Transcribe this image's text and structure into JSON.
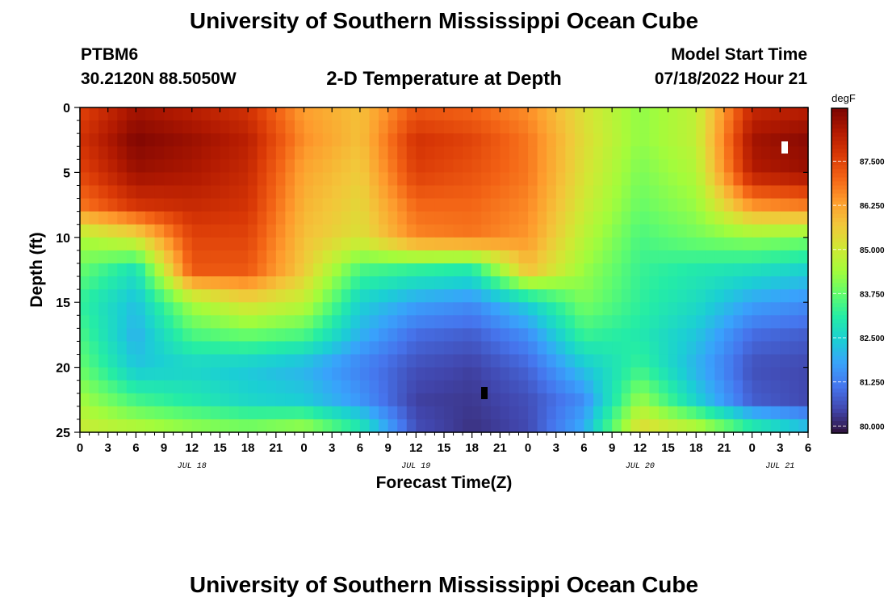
{
  "header": {
    "title": "University of Southern Mississippi Ocean Cube",
    "station": "PTBM6",
    "coords": "30.2120N  88.5050W",
    "subtitle": "2-D Temperature at Depth",
    "model_label": "Model Start Time",
    "model_time": "07/18/2022 Hour 21"
  },
  "footer": {
    "title": "University of Southern Mississippi Ocean Cube"
  },
  "chart_data": {
    "type": "heatmap",
    "xlabel": "Forecast Time(Z)",
    "ylabel": "Depth (ft)",
    "x_hours_range": [
      0,
      78
    ],
    "x_tick_labels": [
      "0",
      "3",
      "6",
      "9",
      "12",
      "15",
      "18",
      "21",
      "0",
      "3",
      "6",
      "9",
      "12",
      "15",
      "18",
      "21",
      "0",
      "3",
      "6",
      "9",
      "12",
      "15",
      "18",
      "21",
      "0",
      "3",
      "6"
    ],
    "date_labels": [
      {
        "label": "JUL 18",
        "hour": 12
      },
      {
        "label": "JUL 19",
        "hour": 36
      },
      {
        "label": "JUL 20",
        "hour": 60
      },
      {
        "label": "JUL 21",
        "hour": 75
      }
    ],
    "ylim": [
      0,
      25
    ],
    "y_tick_labels": [
      "0",
      "5",
      "10",
      "15",
      "20",
      "25"
    ],
    "y_ticks": [
      0,
      5,
      10,
      15,
      20,
      25
    ],
    "colorbar": {
      "unit": "degF",
      "range": [
        79.8,
        89.0
      ],
      "tick_values": [
        80.0,
        81.25,
        82.5,
        83.75,
        85.0,
        86.25,
        87.5
      ],
      "tick_labels": [
        "80.000",
        "81.250",
        "82.500",
        "83.750",
        "85.000",
        "86.250",
        "87.500"
      ]
    },
    "colormap": [
      "#30123b",
      "#4145ab",
      "#4675ed",
      "#39a2fc",
      "#1bcfd4",
      "#24eca6",
      "#61fc6c",
      "#a4fc3b",
      "#d1e834",
      "#f3c63a",
      "#fe9b2d",
      "#f36315",
      "#d93806",
      "#b11901",
      "#7a0402"
    ],
    "x_hours": [
      0,
      6,
      12,
      18,
      24,
      30,
      36,
      42,
      48,
      54,
      60,
      66,
      72,
      78
    ],
    "depths": [
      0,
      2.5,
      5,
      7.5,
      10,
      12.5,
      15,
      17.5,
      20,
      22.5,
      25
    ],
    "temperature_degF": [
      [
        87.5,
        88.5,
        88.2,
        87.8,
        86.3,
        85.8,
        87.2,
        87.0,
        86.5,
        85.2,
        84.2,
        84.8,
        88.0,
        88.2
      ],
      [
        87.8,
        88.9,
        88.6,
        88.2,
        86.5,
        85.8,
        87.8,
        87.5,
        86.8,
        85.3,
        84.2,
        84.8,
        88.5,
        88.8
      ],
      [
        87.5,
        88.6,
        88.4,
        88.0,
        86.2,
        85.6,
        87.6,
        87.3,
        86.8,
        85.2,
        84.0,
        84.6,
        88.3,
        88.6
      ],
      [
        86.8,
        87.8,
        88.0,
        87.8,
        86.0,
        85.4,
        87.0,
        87.0,
        86.6,
        85.0,
        83.8,
        84.3,
        86.5,
        86.8
      ],
      [
        84.5,
        85.2,
        87.5,
        87.5,
        85.8,
        85.2,
        86.6,
        86.8,
        86.4,
        84.7,
        83.5,
        83.9,
        84.2,
        84.0
      ],
      [
        83.8,
        82.8,
        87.2,
        87.2,
        85.6,
        83.5,
        83.2,
        83.0,
        85.8,
        84.3,
        83.3,
        83.0,
        82.8,
        82.5
      ],
      [
        83.2,
        82.2,
        84.5,
        85.3,
        84.8,
        82.5,
        81.8,
        81.5,
        82.5,
        84.0,
        83.2,
        82.7,
        81.8,
        81.5
      ],
      [
        83.5,
        82.0,
        83.5,
        83.8,
        83.5,
        82.0,
        81.0,
        80.8,
        81.5,
        83.3,
        83.0,
        82.3,
        81.0,
        80.8
      ],
      [
        83.8,
        82.3,
        82.5,
        82.3,
        82.0,
        81.3,
        80.6,
        80.4,
        80.9,
        82.3,
        83.3,
        82.0,
        80.6,
        80.5
      ],
      [
        84.4,
        83.4,
        83.0,
        82.6,
        82.4,
        81.6,
        80.4,
        80.3,
        80.6,
        81.5,
        84.3,
        82.5,
        80.8,
        80.5
      ],
      [
        85.0,
        84.8,
        84.4,
        84.2,
        84.6,
        83.2,
        80.6,
        80.2,
        80.5,
        82.0,
        85.5,
        85.0,
        83.5,
        82.5
      ]
    ]
  }
}
